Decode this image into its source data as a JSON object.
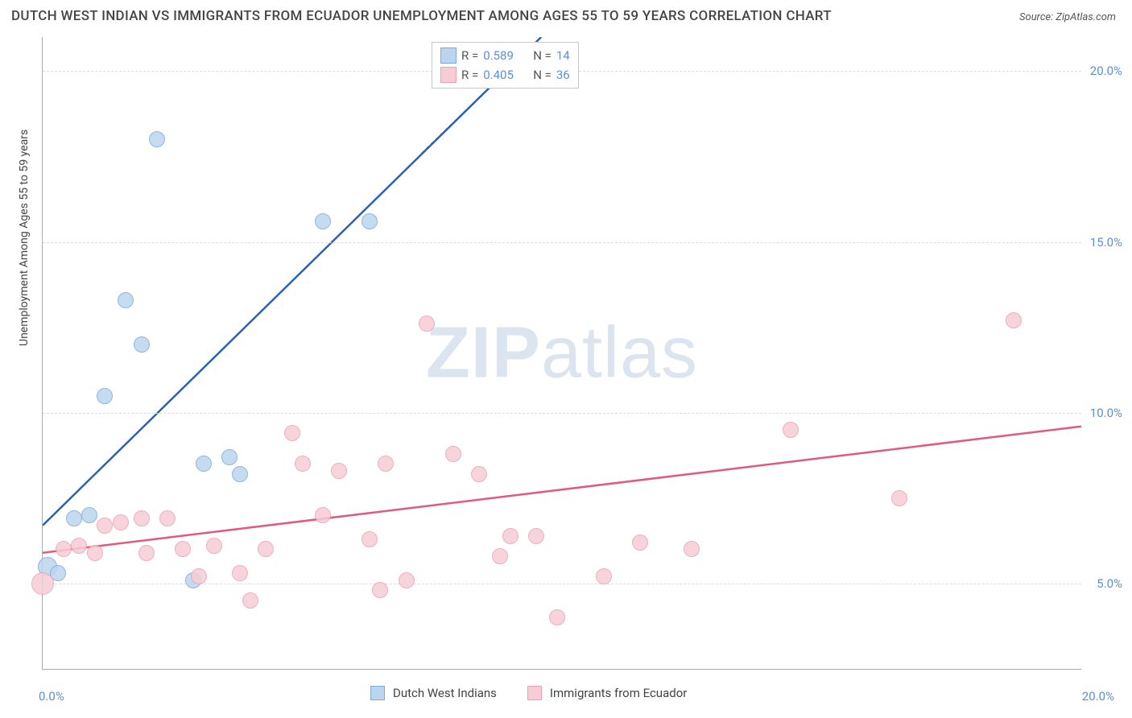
{
  "title": "DUTCH WEST INDIAN VS IMMIGRANTS FROM ECUADOR UNEMPLOYMENT AMONG AGES 55 TO 59 YEARS CORRELATION CHART",
  "source": "Source: ZipAtlas.com",
  "watermark_a": "ZIP",
  "watermark_b": "atlas",
  "ylabel": "Unemployment Among Ages 55 to 59 years",
  "axes": {
    "xlim": [
      0,
      20
    ],
    "ylim": [
      2.5,
      21
    ],
    "ytick_values": [
      5,
      10,
      15,
      20
    ],
    "ytick_labels": [
      "5.0%",
      "10.0%",
      "15.0%",
      "20.0%"
    ],
    "xtick_left_label": "0.0%",
    "xtick_right_label": "20.0%",
    "grid_color": "#dcdcdc",
    "axis_color": "#aaaaaa",
    "tick_label_color": "#5b8fd6"
  },
  "series": [
    {
      "name": "Dutch West Indians",
      "fill": "#bcd5ee",
      "stroke": "#7eaad8",
      "line_color": "#2d62b3",
      "R": "0.589",
      "N": "14",
      "marker_radius": 9,
      "trend": {
        "x1": 0,
        "y1": 6.7,
        "x2": 9.6,
        "y2": 21
      },
      "trend_dash": {
        "x1": 7.3,
        "y1": 17.6,
        "x2": 9.6,
        "y2": 21
      },
      "points": [
        {
          "x": 0.1,
          "y": 5.5,
          "r": 11
        },
        {
          "x": 0.3,
          "y": 5.3,
          "r": 9
        },
        {
          "x": 0.6,
          "y": 6.9,
          "r": 9
        },
        {
          "x": 0.9,
          "y": 7.0,
          "r": 9
        },
        {
          "x": 1.2,
          "y": 10.5,
          "r": 9
        },
        {
          "x": 1.6,
          "y": 13.3,
          "r": 9
        },
        {
          "x": 1.9,
          "y": 12.0,
          "r": 9
        },
        {
          "x": 2.2,
          "y": 18.0,
          "r": 9
        },
        {
          "x": 2.9,
          "y": 5.1,
          "r": 9
        },
        {
          "x": 3.1,
          "y": 8.5,
          "r": 9
        },
        {
          "x": 3.6,
          "y": 8.7,
          "r": 9
        },
        {
          "x": 3.8,
          "y": 8.2,
          "r": 9
        },
        {
          "x": 5.4,
          "y": 15.6,
          "r": 9
        },
        {
          "x": 6.3,
          "y": 15.6,
          "r": 9
        }
      ]
    },
    {
      "name": "Immigrants from Ecuador",
      "fill": "#f6cdd6",
      "stroke": "#eaa2b2",
      "line_color": "#e05a7e",
      "R": "0.405",
      "N": "36",
      "marker_radius": 9,
      "trend": {
        "x1": 0,
        "y1": 5.9,
        "x2": 20,
        "y2": 9.6
      },
      "points": [
        {
          "x": 0.0,
          "y": 5.0,
          "r": 13
        },
        {
          "x": 0.4,
          "y": 6.0,
          "r": 9
        },
        {
          "x": 0.7,
          "y": 6.1,
          "r": 9
        },
        {
          "x": 1.0,
          "y": 5.9,
          "r": 9
        },
        {
          "x": 1.2,
          "y": 6.7,
          "r": 9
        },
        {
          "x": 1.5,
          "y": 6.8,
          "r": 9
        },
        {
          "x": 1.9,
          "y": 6.9,
          "r": 9
        },
        {
          "x": 2.0,
          "y": 5.9,
          "r": 9
        },
        {
          "x": 2.4,
          "y": 6.9,
          "r": 9
        },
        {
          "x": 2.7,
          "y": 6.0,
          "r": 9
        },
        {
          "x": 3.0,
          "y": 5.2,
          "r": 9
        },
        {
          "x": 3.3,
          "y": 6.1,
          "r": 9
        },
        {
          "x": 3.8,
          "y": 5.3,
          "r": 9
        },
        {
          "x": 4.0,
          "y": 4.5,
          "r": 9
        },
        {
          "x": 4.3,
          "y": 6.0,
          "r": 9
        },
        {
          "x": 4.8,
          "y": 9.4,
          "r": 9
        },
        {
          "x": 5.0,
          "y": 8.5,
          "r": 9
        },
        {
          "x": 5.4,
          "y": 7.0,
          "r": 9
        },
        {
          "x": 5.7,
          "y": 8.3,
          "r": 9
        },
        {
          "x": 6.3,
          "y": 6.3,
          "r": 9
        },
        {
          "x": 6.5,
          "y": 4.8,
          "r": 9
        },
        {
          "x": 6.6,
          "y": 8.5,
          "r": 9
        },
        {
          "x": 7.0,
          "y": 5.1,
          "r": 9
        },
        {
          "x": 7.4,
          "y": 12.6,
          "r": 9
        },
        {
          "x": 7.9,
          "y": 8.8,
          "r": 9
        },
        {
          "x": 8.4,
          "y": 8.2,
          "r": 9
        },
        {
          "x": 8.8,
          "y": 5.8,
          "r": 9
        },
        {
          "x": 9.0,
          "y": 6.4,
          "r": 9
        },
        {
          "x": 9.5,
          "y": 6.4,
          "r": 9
        },
        {
          "x": 9.9,
          "y": 4.0,
          "r": 9
        },
        {
          "x": 10.8,
          "y": 5.2,
          "r": 9
        },
        {
          "x": 11.5,
          "y": 6.2,
          "r": 9
        },
        {
          "x": 14.4,
          "y": 9.5,
          "r": 9
        },
        {
          "x": 16.5,
          "y": 7.5,
          "r": 9
        },
        {
          "x": 18.7,
          "y": 12.7,
          "r": 9
        },
        {
          "x": 12.5,
          "y": 6.0,
          "r": 9
        }
      ]
    }
  ],
  "legend_bottom": [
    {
      "label": "Dutch West Indians",
      "fill": "#bcd5ee",
      "stroke": "#7eaad8"
    },
    {
      "label": "Immigrants from Ecuador",
      "fill": "#f6cdd6",
      "stroke": "#eaa2b2"
    }
  ],
  "legend_top": {
    "R_label": "R  =",
    "N_label": "N  ="
  }
}
